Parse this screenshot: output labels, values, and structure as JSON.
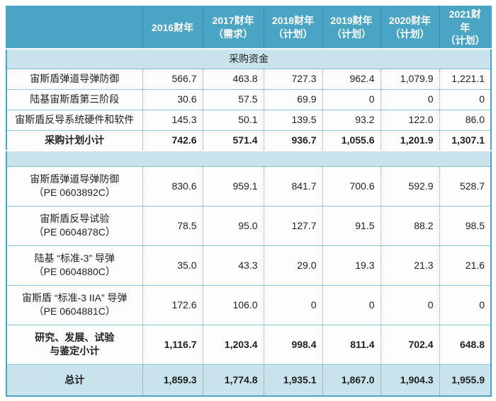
{
  "colors": {
    "header_bg": "#4aa5c4",
    "band_bg": "#c9e3ed",
    "grid_teal": "#8ec6da",
    "grid_gray_dotted": "#9b9b9b",
    "header_text": "#ffffff",
    "body_text": "#1f1f1f"
  },
  "table": {
    "columns": [
      "2016财年",
      "2017财年\n（需求）",
      "2018财年\n（计划）",
      "2019财年\n（计划）",
      "2020财年\n（计划）",
      "2021财年\n（计划）"
    ],
    "section_procurement": {
      "title": "采购资金",
      "rows": [
        {
          "label": "宙斯盾弹道导弹防御",
          "values": [
            "566.7",
            "463.8",
            "727.3",
            "962.4",
            "1,079.9",
            "1,221.1"
          ]
        },
        {
          "label": "陆基宙斯盾第三阶段",
          "values": [
            "30.6",
            "57.5",
            "69.9",
            "0",
            "0",
            "0"
          ]
        },
        {
          "label": "宙斯盾反导系统硬件和软件",
          "values": [
            "145.3",
            "50.1",
            "139.5",
            "93.2",
            "122.0",
            "86.0"
          ]
        }
      ],
      "subtotal": {
        "label": "采购计划小计",
        "values": [
          "742.6",
          "571.4",
          "936.7",
          "1,055.6",
          "1,201.9",
          "1,307.1"
        ]
      }
    },
    "section_rdte": {
      "rows": [
        {
          "label": "宙斯盾弹道导弹防御\n（PE 0603892C）",
          "values": [
            "830.6",
            "959.1",
            "841.7",
            "700.6",
            "592.9",
            "528.7"
          ]
        },
        {
          "label": "宙斯盾反导试验\n（PE 0604878C）",
          "values": [
            "78.5",
            "95.0",
            "127.7",
            "91.5",
            "88.2",
            "98.5"
          ]
        },
        {
          "label": "陆基 “标准-3” 导弹\n（PE 0604880C）",
          "values": [
            "35.0",
            "43.3",
            "29.0",
            "19.3",
            "21.3",
            "21.6"
          ]
        },
        {
          "label": "宙斯盾 “标准-3 IIA” 导弹\n（PE 0604881C）",
          "values": [
            "172.6",
            "106.0",
            "0",
            "0",
            "0",
            "0"
          ]
        }
      ],
      "subtotal": {
        "label": "研究、发展、试验\n与鉴定小计",
        "values": [
          "1,116.7",
          "1,203.4",
          "998.4",
          "811.4",
          "702.4",
          "648.8"
        ]
      }
    },
    "total": {
      "label": "总计",
      "values": [
        "1,859.3",
        "1,774.8",
        "1,935.1",
        "1,867.0",
        "1,904.3",
        "1,955.9"
      ]
    }
  }
}
